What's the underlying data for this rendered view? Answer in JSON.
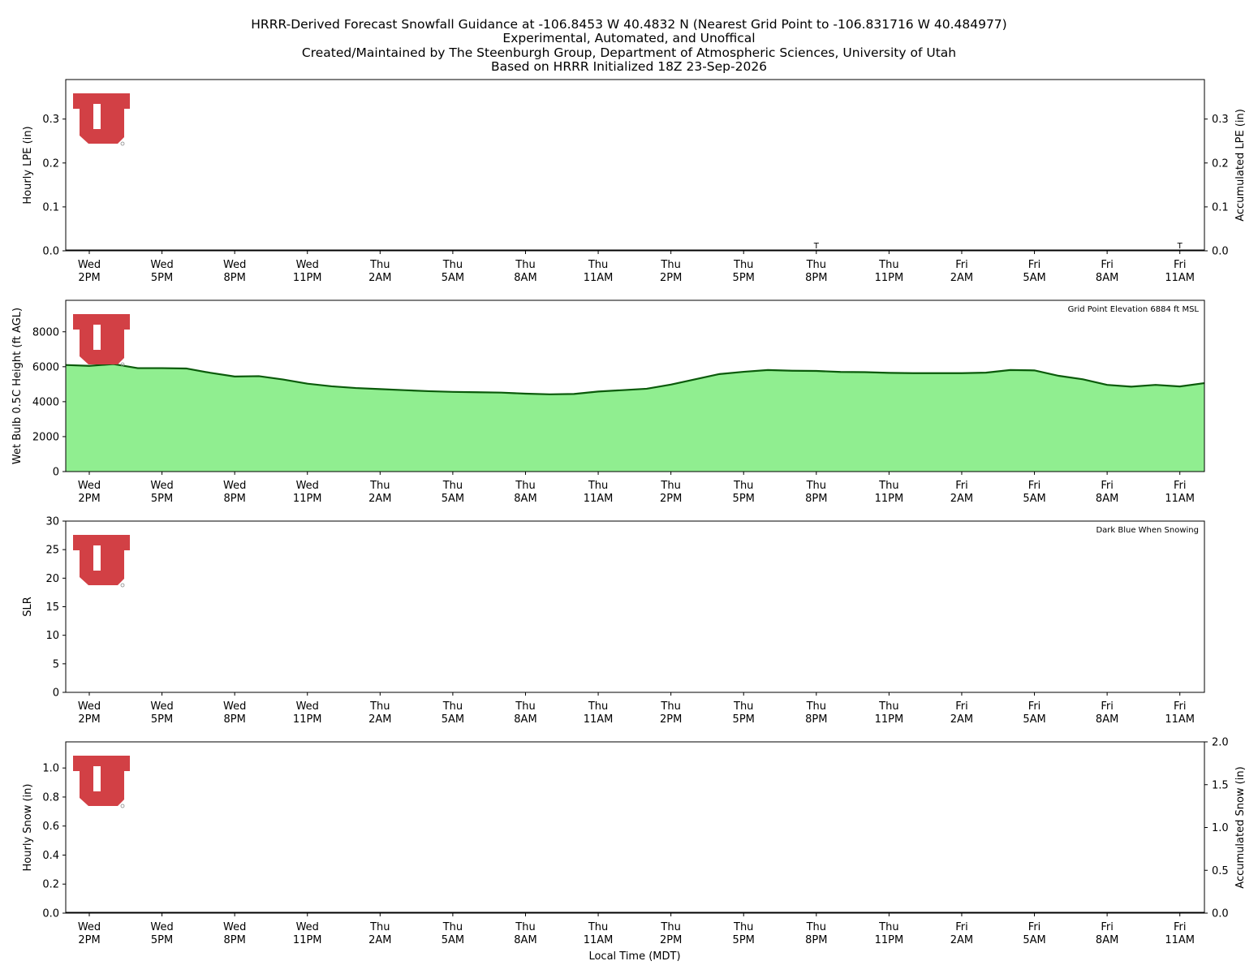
{
  "figure": {
    "title_lines": [
      "HRRR-Derived Forecast Snowfall Guidance at -106.8453 W 40.4832 N (Nearest Grid Point to -106.831716 W 40.484977)",
      "Experimental, Automated, and Unoffical",
      "Created/Maintained by The Steenburgh Group, Department of Atmospheric Sciences, University of Utah",
      "Based on HRRR Initialized 18Z 23-Sep-2026"
    ],
    "xlabel": "Local Time (MDT)",
    "x_ticks": [
      {
        "day": "Wed",
        "time": "2PM"
      },
      {
        "day": "Wed",
        "time": "5PM"
      },
      {
        "day": "Wed",
        "time": "8PM"
      },
      {
        "day": "Wed",
        "time": "11PM"
      },
      {
        "day": "Thu",
        "time": "2AM"
      },
      {
        "day": "Thu",
        "time": "5AM"
      },
      {
        "day": "Thu",
        "time": "8AM"
      },
      {
        "day": "Thu",
        "time": "11AM"
      },
      {
        "day": "Thu",
        "time": "2PM"
      },
      {
        "day": "Thu",
        "time": "5PM"
      },
      {
        "day": "Thu",
        "time": "8PM"
      },
      {
        "day": "Thu",
        "time": "11PM"
      },
      {
        "day": "Fri",
        "time": "2AM"
      },
      {
        "day": "Fri",
        "time": "5AM"
      },
      {
        "day": "Fri",
        "time": "8AM"
      },
      {
        "day": "Fri",
        "time": "11AM"
      }
    ],
    "logo_colors": {
      "fill": "#d24045",
      "mark": "#8a8a8a"
    }
  },
  "chart_data": [
    {
      "type": "line",
      "ylabel": "Hourly LPE (in)",
      "ylabel_right": "Accumulated LPE (in)",
      "ylim": [
        0,
        0.39
      ],
      "y_ticks": [
        0.0,
        0.1,
        0.2,
        0.3
      ],
      "y_tick_labels": [
        "0.0",
        "0.1",
        "0.2",
        "0.3"
      ],
      "y2_ticks": [
        0.0,
        0.1,
        0.2,
        0.3
      ],
      "y2_tick_labels": [
        "0.0",
        "0.1",
        "0.2",
        "0.3"
      ],
      "annotations": [
        {
          "text": "T",
          "x_hours": 30
        },
        {
          "text": "T",
          "x_hours": 45
        }
      ],
      "series": [
        {
          "values": [
            0,
            0
          ],
          "color": "#000000"
        }
      ]
    },
    {
      "type": "area",
      "ylabel": "Wet Bulb 0.5C Height (ft AGL)",
      "ylim": [
        0,
        9800
      ],
      "y_ticks": [
        0,
        2000,
        4000,
        6000,
        8000
      ],
      "y_tick_labels": [
        "0",
        "2000",
        "4000",
        "6000",
        "8000"
      ],
      "annotation": "Grid Point Elevation 6884 ft MSL",
      "fill_color": "#90ee90",
      "line_color": "#0a5a0a",
      "x_hours_start": -1,
      "x_hours_step": 1,
      "values": [
        6100,
        6050,
        6150,
        5920,
        5920,
        5900,
        5650,
        5440,
        5460,
        5270,
        5030,
        4880,
        4780,
        4720,
        4660,
        4600,
        4560,
        4540,
        4520,
        4460,
        4420,
        4440,
        4580,
        4660,
        4740,
        4980,
        5280,
        5580,
        5710,
        5810,
        5770,
        5760,
        5700,
        5690,
        5650,
        5630,
        5630,
        5630,
        5660,
        5810,
        5790,
        5480,
        5280,
        4960,
        4860,
        4960,
        4870,
        5060
      ]
    },
    {
      "type": "bar",
      "ylabel": "SLR",
      "ylim": [
        0,
        30
      ],
      "y_ticks": [
        0,
        5,
        10,
        15,
        20,
        25,
        30
      ],
      "y_tick_labels": [
        "0",
        "5",
        "10",
        "15",
        "20",
        "25",
        "30"
      ],
      "annotation": "Dark Blue When Snowing",
      "values": []
    },
    {
      "type": "line",
      "ylabel": "Hourly Snow (in)",
      "ylabel_right": "Accumulated Snow (in)",
      "ylim": [
        0,
        1.18
      ],
      "y_ticks": [
        0.0,
        0.2,
        0.4,
        0.6,
        0.8,
        1.0
      ],
      "y_tick_labels": [
        "0.0",
        "0.2",
        "0.4",
        "0.6",
        "0.8",
        "1.0"
      ],
      "y2lim": [
        0,
        2.0
      ],
      "y2_ticks": [
        0.0,
        0.5,
        1.0,
        1.5,
        2.0
      ],
      "y2_tick_labels": [
        "0.0",
        "0.5",
        "1.0",
        "1.5",
        "2.0"
      ],
      "series": [
        {
          "values": [
            0,
            0
          ],
          "color": "#000000"
        }
      ]
    }
  ]
}
